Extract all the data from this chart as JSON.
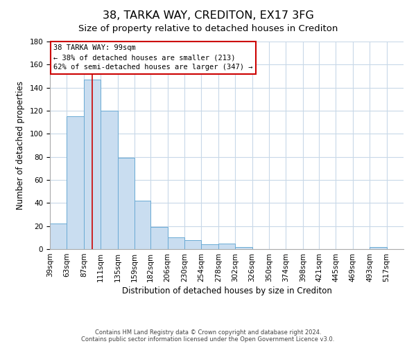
{
  "title": "38, TARKA WAY, CREDITON, EX17 3FG",
  "subtitle": "Size of property relative to detached houses in Crediton",
  "xlabel": "Distribution of detached houses by size in Crediton",
  "ylabel": "Number of detached properties",
  "bar_values": [
    22,
    115,
    147,
    120,
    79,
    42,
    19,
    10,
    8,
    4,
    5,
    2,
    0,
    0,
    0,
    0,
    0,
    0,
    0,
    2,
    0
  ],
  "bar_edges": [
    39,
    63,
    87,
    111,
    135,
    159,
    182,
    206,
    230,
    254,
    278,
    302,
    326,
    350,
    374,
    398,
    421,
    445,
    469,
    493,
    517
  ],
  "xtick_labels": [
    "39sqm",
    "63sqm",
    "87sqm",
    "111sqm",
    "135sqm",
    "159sqm",
    "182sqm",
    "206sqm",
    "230sqm",
    "254sqm",
    "278sqm",
    "302sqm",
    "326sqm",
    "350sqm",
    "374sqm",
    "398sqm",
    "421sqm",
    "445sqm",
    "469sqm",
    "493sqm",
    "517sqm"
  ],
  "bar_color": "#c9ddf0",
  "bar_edge_color": "#6aaad4",
  "ylim": [
    0,
    180
  ],
  "yticks": [
    0,
    20,
    40,
    60,
    80,
    100,
    120,
    140,
    160,
    180
  ],
  "property_size": 99,
  "vline_color": "#cc0000",
  "annotation_line1": "38 TARKA WAY: 99sqm",
  "annotation_line2": "← 38% of detached houses are smaller (213)",
  "annotation_line3": "62% of semi-detached houses are larger (347) →",
  "annotation_box_color": "#cc0000",
  "footer_line1": "Contains HM Land Registry data © Crown copyright and database right 2024.",
  "footer_line2": "Contains public sector information licensed under the Open Government Licence v3.0.",
  "bg_color": "#ffffff",
  "grid_color": "#c8d8e8",
  "title_fontsize": 11.5,
  "subtitle_fontsize": 9.5,
  "axis_label_fontsize": 8.5,
  "tick_fontsize": 7.5,
  "annotation_fontsize": 7.5,
  "footer_fontsize": 6
}
